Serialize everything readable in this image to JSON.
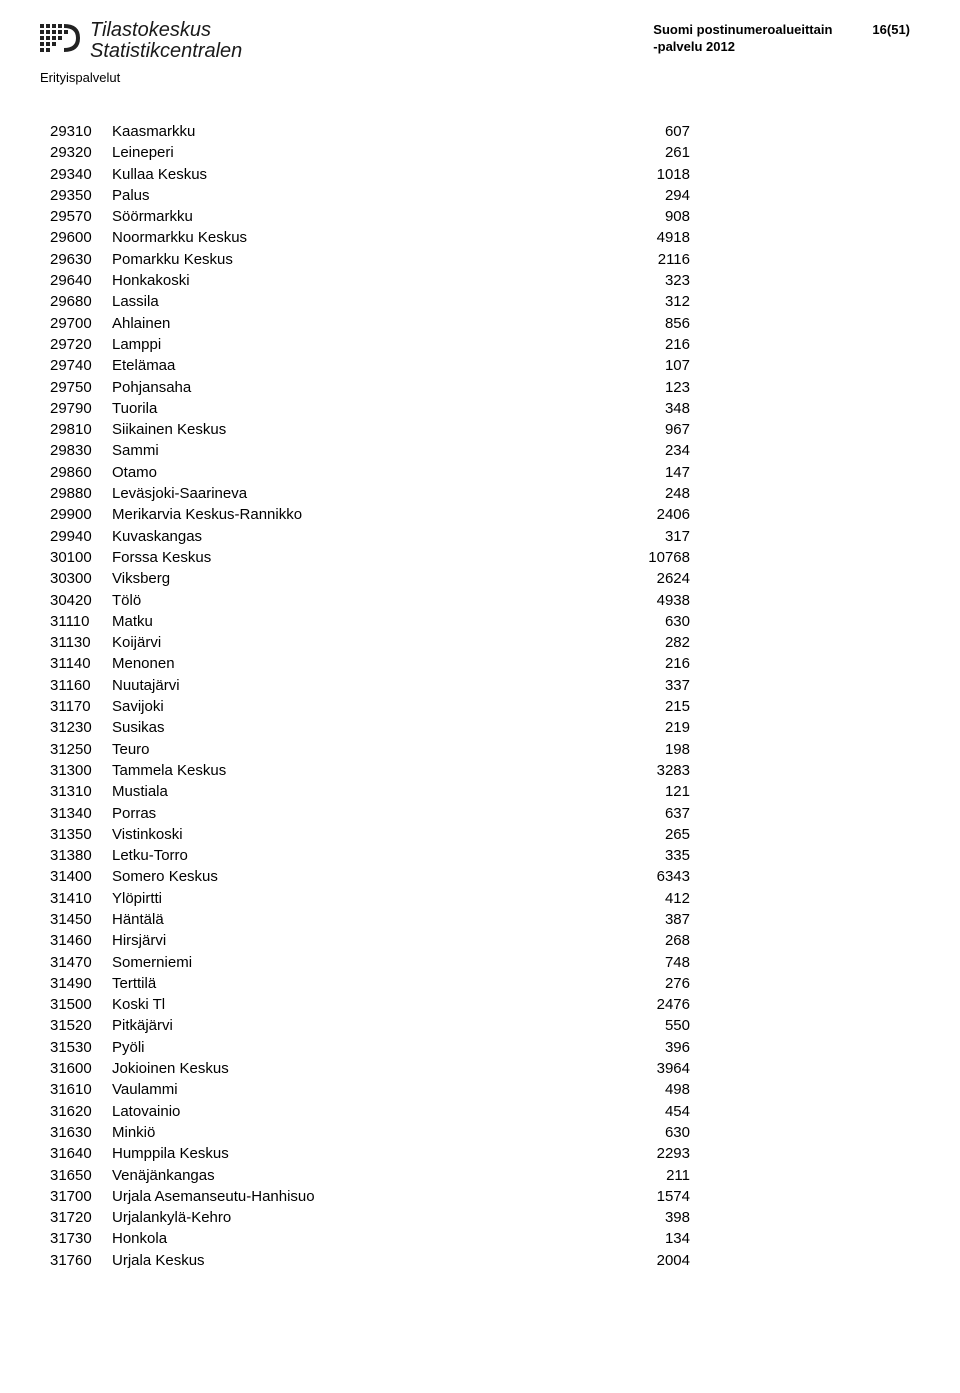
{
  "header": {
    "logo_line1": "Tilastokeskus",
    "logo_line2": "Statistikcentralen",
    "doc_title_line1": "Suomi postinumeroalueittain",
    "doc_title_line2": "-palvelu 2012",
    "page_number": "16(51)",
    "subhead": "Erityispalvelut"
  },
  "rows": [
    {
      "code": "29310",
      "name": "Kaasmarkku",
      "val": "607"
    },
    {
      "code": "29320",
      "name": "Leineperi",
      "val": "261"
    },
    {
      "code": "29340",
      "name": "Kullaa Keskus",
      "val": "1018"
    },
    {
      "code": "29350",
      "name": "Palus",
      "val": "294"
    },
    {
      "code": "29570",
      "name": "Söörmarkku",
      "val": "908"
    },
    {
      "code": "29600",
      "name": "Noormarkku Keskus",
      "val": "4918"
    },
    {
      "code": "29630",
      "name": "Pomarkku Keskus",
      "val": "2116"
    },
    {
      "code": "29640",
      "name": "Honkakoski",
      "val": "323"
    },
    {
      "code": "29680",
      "name": "Lassila",
      "val": "312"
    },
    {
      "code": "29700",
      "name": "Ahlainen",
      "val": "856"
    },
    {
      "code": "29720",
      "name": "Lamppi",
      "val": "216"
    },
    {
      "code": "29740",
      "name": "Etelämaa",
      "val": "107"
    },
    {
      "code": "29750",
      "name": "Pohjansaha",
      "val": "123"
    },
    {
      "code": "29790",
      "name": "Tuorila",
      "val": "348"
    },
    {
      "code": "29810",
      "name": "Siikainen Keskus",
      "val": "967"
    },
    {
      "code": "29830",
      "name": "Sammi",
      "val": "234"
    },
    {
      "code": "29860",
      "name": "Otamo",
      "val": "147"
    },
    {
      "code": "29880",
      "name": "Leväsjoki-Saarineva",
      "val": "248"
    },
    {
      "code": "29900",
      "name": "Merikarvia Keskus-Rannikko",
      "val": "2406"
    },
    {
      "code": "29940",
      "name": "Kuvaskangas",
      "val": "317"
    },
    {
      "code": "30100",
      "name": "Forssa Keskus",
      "val": "10768"
    },
    {
      "code": "30300",
      "name": "Viksberg",
      "val": "2624"
    },
    {
      "code": "30420",
      "name": "Tölö",
      "val": "4938"
    },
    {
      "code": "31110",
      "name": "Matku",
      "val": "630"
    },
    {
      "code": "31130",
      "name": "Koijärvi",
      "val": "282"
    },
    {
      "code": "31140",
      "name": "Menonen",
      "val": "216"
    },
    {
      "code": "31160",
      "name": "Nuutajärvi",
      "val": "337"
    },
    {
      "code": "31170",
      "name": "Savijoki",
      "val": "215"
    },
    {
      "code": "31230",
      "name": "Susikas",
      "val": "219"
    },
    {
      "code": "31250",
      "name": "Teuro",
      "val": "198"
    },
    {
      "code": "31300",
      "name": "Tammela Keskus",
      "val": "3283"
    },
    {
      "code": "31310",
      "name": "Mustiala",
      "val": "121"
    },
    {
      "code": "31340",
      "name": "Porras",
      "val": "637"
    },
    {
      "code": "31350",
      "name": "Vistinkoski",
      "val": "265"
    },
    {
      "code": "31380",
      "name": "Letku-Torro",
      "val": "335"
    },
    {
      "code": "31400",
      "name": "Somero Keskus",
      "val": "6343"
    },
    {
      "code": "31410",
      "name": "Ylöpirtti",
      "val": "412"
    },
    {
      "code": "31450",
      "name": "Häntälä",
      "val": "387"
    },
    {
      "code": "31460",
      "name": "Hirsjärvi",
      "val": "268"
    },
    {
      "code": "31470",
      "name": "Somerniemi",
      "val": "748"
    },
    {
      "code": "31490",
      "name": "Terttilä",
      "val": "276"
    },
    {
      "code": "31500",
      "name": "Koski Tl",
      "val": "2476"
    },
    {
      "code": "31520",
      "name": "Pitkäjärvi",
      "val": "550"
    },
    {
      "code": "31530",
      "name": "Pyöli",
      "val": "396"
    },
    {
      "code": "31600",
      "name": "Jokioinen Keskus",
      "val": "3964"
    },
    {
      "code": "31610",
      "name": "Vaulammi",
      "val": "498"
    },
    {
      "code": "31620",
      "name": "Latovainio",
      "val": "454"
    },
    {
      "code": "31630",
      "name": "Minkiö",
      "val": "630"
    },
    {
      "code": "31640",
      "name": "Humppila Keskus",
      "val": "2293"
    },
    {
      "code": "31650",
      "name": "Venäjänkangas",
      "val": "211"
    },
    {
      "code": "31700",
      "name": "Urjala Asemanseutu-Hanhisuo",
      "val": "1574"
    },
    {
      "code": "31720",
      "name": "Urjalankylä-Kehro",
      "val": "398"
    },
    {
      "code": "31730",
      "name": "Honkola",
      "val": "134"
    },
    {
      "code": "31760",
      "name": "Urjala Keskus",
      "val": "2004"
    }
  ]
}
